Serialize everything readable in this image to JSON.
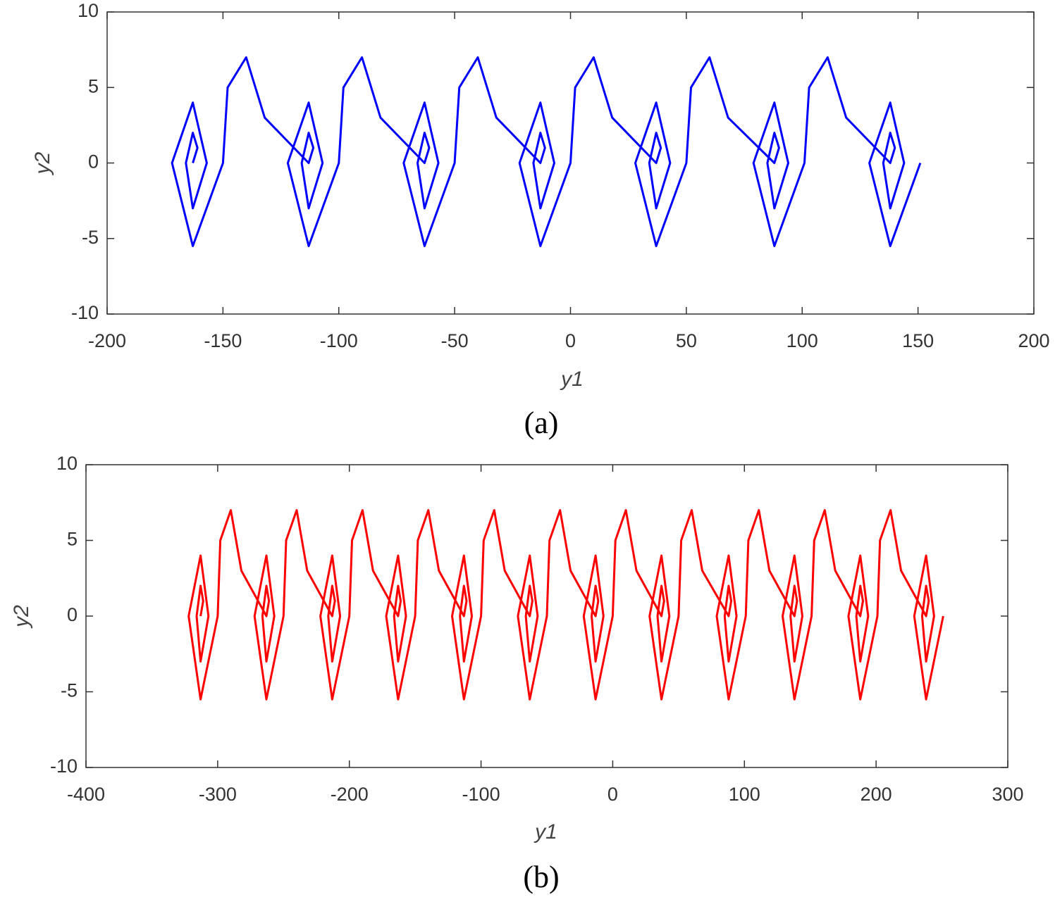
{
  "chart_data": [
    {
      "type": "line",
      "caption": "(a)",
      "xlabel": "y1",
      "ylabel": "y2",
      "color": "#0000ff",
      "xlim": [
        -200,
        200
      ],
      "ylim": [
        -10,
        10
      ],
      "xticks": [
        -200,
        -150,
        -100,
        -50,
        0,
        50,
        100,
        150,
        200
      ],
      "yticks": [
        -10,
        -5,
        0,
        5,
        10
      ],
      "grid": false,
      "x": [
        -163,
        -161,
        -163,
        -166,
        -163,
        -157,
        -163,
        -172,
        -163,
        -150,
        -148,
        -140,
        -132,
        -113,
        -111,
        -113,
        -116,
        -113,
        -107,
        -113,
        -122,
        -113,
        -100,
        -98,
        -90,
        -82,
        -63,
        -61,
        -63,
        -66,
        -63,
        -57,
        -63,
        -72,
        -63,
        -50,
        -48,
        -40,
        -32,
        -13,
        -11,
        -13,
        -16,
        -13,
        -7,
        -13,
        -22,
        -13,
        0,
        2,
        10,
        18,
        37,
        39,
        37,
        34,
        37,
        43,
        37,
        28,
        37,
        50,
        52,
        60,
        68,
        88,
        90,
        88,
        85,
        88,
        94,
        88,
        79,
        88,
        101,
        103,
        111,
        119,
        138,
        140,
        138,
        135,
        138,
        144,
        138,
        129,
        138,
        151
      ],
      "values": [
        0,
        1,
        2,
        0,
        -3,
        0,
        4,
        0,
        -5.5,
        0,
        5,
        7,
        3,
        0,
        1,
        2,
        0,
        -3,
        0,
        4,
        0,
        -5.5,
        0,
        5,
        7,
        3,
        0,
        1,
        2,
        0,
        -3,
        0,
        4,
        0,
        -5.5,
        0,
        5,
        7,
        3,
        0,
        1,
        2,
        0,
        -3,
        0,
        4,
        0,
        -5.5,
        0,
        5,
        7,
        3,
        0,
        1,
        2,
        0,
        -3,
        0,
        4,
        0,
        -5.5,
        0,
        5,
        7,
        3,
        0,
        1,
        2,
        0,
        -3,
        0,
        4,
        0,
        -5.5,
        0,
        5,
        7,
        3,
        0,
        1,
        2,
        0,
        -3,
        0,
        4,
        0,
        -5.5,
        0
      ]
    },
    {
      "type": "line",
      "caption": "(b)",
      "xlabel": "y1",
      "ylabel": "y2",
      "color": "#ff0000",
      "xlim": [
        -400,
        300
      ],
      "ylim": [
        -10,
        10
      ],
      "xticks": [
        -400,
        -300,
        -200,
        -100,
        0,
        100,
        200,
        300
      ],
      "yticks": [
        -10,
        -5,
        0,
        5,
        10
      ],
      "grid": false,
      "x": [
        -313,
        -311,
        -313,
        -316,
        -313,
        -307,
        -313,
        -322,
        -313,
        -300,
        -298,
        -290,
        -282,
        -263,
        -261,
        -263,
        -266,
        -263,
        -257,
        -263,
        -272,
        -263,
        -250,
        -248,
        -240,
        -232,
        -213,
        -211,
        -213,
        -216,
        -213,
        -207,
        -213,
        -222,
        -213,
        -200,
        -198,
        -190,
        -182,
        -163,
        -161,
        -163,
        -166,
        -163,
        -157,
        -163,
        -172,
        -163,
        -150,
        -148,
        -140,
        -132,
        -113,
        -111,
        -113,
        -116,
        -113,
        -107,
        -113,
        -122,
        -113,
        -100,
        -98,
        -90,
        -82,
        -63,
        -61,
        -63,
        -66,
        -63,
        -57,
        -63,
        -72,
        -63,
        -50,
        -48,
        -40,
        -32,
        -13,
        -11,
        -13,
        -16,
        -13,
        -7,
        -13,
        -22,
        -13,
        0,
        2,
        10,
        18,
        37,
        39,
        37,
        34,
        37,
        43,
        37,
        28,
        37,
        50,
        52,
        60,
        68,
        88,
        90,
        88,
        85,
        88,
        94,
        88,
        79,
        88,
        101,
        103,
        111,
        119,
        138,
        140,
        138,
        135,
        138,
        144,
        138,
        129,
        138,
        151,
        153,
        161,
        169,
        188,
        190,
        188,
        185,
        188,
        194,
        188,
        179,
        188,
        201,
        203,
        211,
        219,
        238,
        240,
        238,
        235,
        238,
        244,
        238,
        229,
        238,
        251
      ],
      "values": [
        0,
        1,
        2,
        0,
        -3,
        0,
        4,
        0,
        -5.5,
        0,
        5,
        7,
        3,
        0,
        1,
        2,
        0,
        -3,
        0,
        4,
        0,
        -5.5,
        0,
        5,
        7,
        3,
        0,
        1,
        2,
        0,
        -3,
        0,
        4,
        0,
        -5.5,
        0,
        5,
        7,
        3,
        0,
        1,
        2,
        0,
        -3,
        0,
        4,
        0,
        -5.5,
        0,
        5,
        7,
        3,
        0,
        1,
        2,
        0,
        -3,
        0,
        4,
        0,
        -5.5,
        0,
        5,
        7,
        3,
        0,
        1,
        2,
        0,
        -3,
        0,
        4,
        0,
        -5.5,
        0,
        5,
        7,
        3,
        0,
        1,
        2,
        0,
        -3,
        0,
        4,
        0,
        -5.5,
        0,
        5,
        7,
        3,
        0,
        1,
        2,
        0,
        -3,
        0,
        4,
        0,
        -5.5,
        0,
        5,
        7,
        3,
        0,
        1,
        2,
        0,
        -3,
        0,
        4,
        0,
        -5.5,
        0,
        5,
        7,
        3,
        0,
        1,
        2,
        0,
        -3,
        0,
        4,
        0,
        -5.5,
        0,
        5,
        7,
        3,
        0,
        1,
        2,
        0,
        -3,
        0,
        4,
        0,
        -5.5,
        0,
        5,
        7,
        3,
        0,
        1,
        2,
        0,
        -3,
        0,
        4,
        0,
        -5.5,
        0
      ]
    }
  ]
}
